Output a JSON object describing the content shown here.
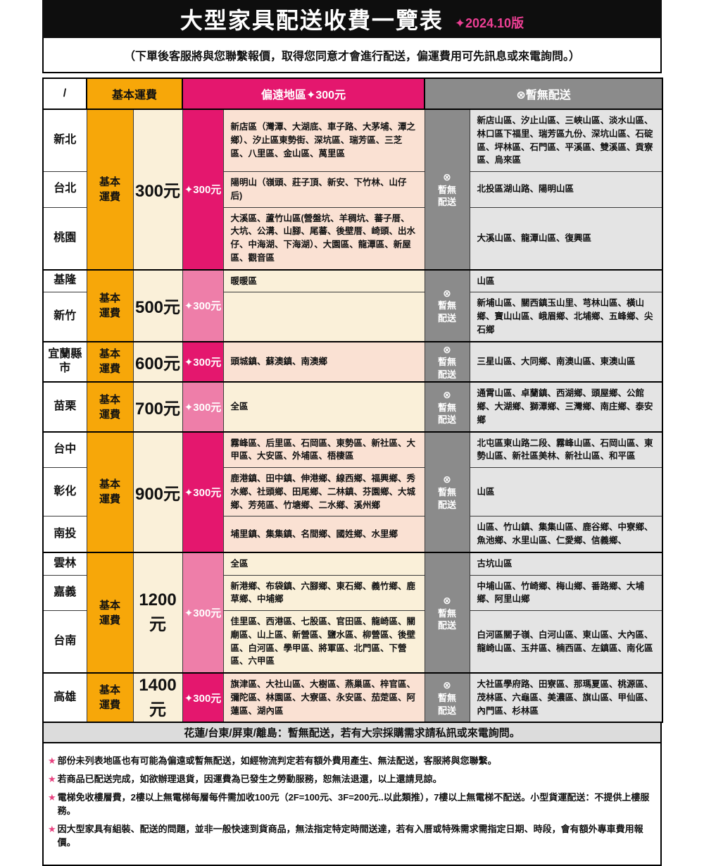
{
  "header": {
    "title": "大型家具配送收費一覽表",
    "version": "✦2024.10版"
  },
  "subtitle": "（下單後客服將與您聯繫報價，取得您同意才會進行配送，偏運費用可先訊息或來電詢問。）",
  "table": {
    "headers": {
      "region": "/",
      "basic": "基本運費",
      "remote": "偏遠地區✦300元",
      "no_delivery": "⊗暫無配送"
    },
    "basic_fee_label_lines": [
      "基本",
      "運費"
    ],
    "no_delivery_label_lines": [
      "⊗",
      "暫無",
      "配送"
    ],
    "groups": [
      {
        "fee": "300元",
        "surcharge": "✦300元",
        "accent": "magenta",
        "rows": [
          {
            "region": "新北",
            "remote": "新店區（灣潭、大湖底、車子路、大茅埔、潭之鄉）、汐止區東勢街、深坑區、瑞芳區、三芝區、八里區、金山區、萬里區",
            "no_delivery": "新店山區、汐止山區、三峽山區、淡水山區、林口區下福里、瑞芳區九份、深坑山區、石碇區、坪林區、石門區、平溪區、雙溪區、貢寮區、烏來區"
          },
          {
            "region": "台北",
            "remote": "陽明山（嶺頭、莊子頂、新安、下竹林、山仔后)",
            "no_delivery": "北投區湖山路、陽明山區"
          },
          {
            "region": "桃園",
            "remote": "大溪區、蘆竹山區(營盤坑、羊稠坑、蕃子厝、大坑、公溝、山腳、尾蕃、後壁厝、崎頭、出水仔、中海湖、下海湖）、大園區、龍潭區、新屋區、觀音區",
            "no_delivery": "大溪山區、龍潭山區、復興區"
          }
        ]
      },
      {
        "fee": "500元",
        "surcharge": "✦300元",
        "accent": "pink",
        "rows": [
          {
            "region": "基隆",
            "remote": "暖暖區",
            "no_delivery": "山區"
          },
          {
            "region": "新竹",
            "remote": "",
            "no_delivery": "新埔山區、關西鎮玉山里、芎林山區、橫山鄉、寶山山區、峨眉鄉、北埔鄉、五峰鄉、尖石鄉"
          }
        ]
      },
      {
        "fee": "600元",
        "surcharge": "✦300元",
        "accent": "magenta",
        "rows": [
          {
            "region": "宜蘭縣市",
            "remote": "頭城鎮、蘇澳鎮、南澳鄉",
            "no_delivery": "三星山區、大同鄉、南澳山區、東澳山區"
          }
        ]
      },
      {
        "fee": "700元",
        "surcharge": "✦300元",
        "accent": "pink",
        "rows": [
          {
            "region": "苗栗",
            "remote": "全區",
            "no_delivery": "通霄山區、卓蘭鎮、西湖鄉、頭屋鄉、公館鄉、大湖鄉、獅潭鄉、三灣鄉、南庄鄉、泰安鄉"
          }
        ]
      },
      {
        "fee": "900元",
        "surcharge": "✦300元",
        "accent": "magenta",
        "rows": [
          {
            "region": "台中",
            "remote": "霧峰區、后里區、石岡區、東勢區、新社區、大甲區、大安區、外埔區、梧棲區",
            "no_delivery": "北屯區東山路二段、霧峰山區、石岡山區、東勢山區、新社區美林、新社山區、和平區"
          },
          {
            "region": "彰化",
            "remote": "鹿港鎮、田中鎮、伸港鄉、線西鄉、福興鄉、秀水鄉、社頭鄉、田尾鄉、二林鎮、芬園鄉、大城鄉、芳苑區、竹塘鄉、二水鄉、溪州鄉",
            "no_delivery": "山區"
          },
          {
            "region": "南投",
            "remote": "埔里鎮、集集鎮、名間鄉、國姓鄉、水里鄉",
            "no_delivery": "山區、竹山鎮、集集山區、鹿谷鄉、中寮鄉、魚池鄉、水里山區、仁愛鄉、信義鄉、"
          }
        ]
      },
      {
        "fee": "1200元",
        "surcharge": "✦300元",
        "accent": "pink",
        "rows": [
          {
            "region": "雲林",
            "remote": "全區",
            "no_delivery": "古坑山區"
          },
          {
            "region": "嘉義",
            "remote": "新港鄉、布袋鎮、六腳鄉、東石鄉、義竹鄉、鹿草鄉、中埔鄉",
            "no_delivery": "中埔山區、竹崎鄉、梅山鄉、番路鄉、大埔鄉、阿里山鄉"
          },
          {
            "region": "台南",
            "remote": "佳里區、西港區、七股區、官田區、龍崎區、關廟區、山上區、新營區、鹽水區、柳營區、後壁區、白河區、學甲區、將軍區、北門區、下營區、六甲區",
            "no_delivery": "白河區關子嶺、白河山區、東山區、大內區、龍崎山區、玉井區、楠西區、左鎮區、南化區"
          }
        ]
      },
      {
        "fee": "1400元",
        "surcharge": "✦300元",
        "accent": "magenta",
        "rows": [
          {
            "region": "高雄",
            "remote": "旗津區、大社山區、大樹區、燕巢區、梓官區、彌陀區、林園區、大寮區、永安區、茄萣區、阿蓮區、湖內區",
            "no_delivery": "大社區學府路、田寮區、那瑪夏區、桃源區、茂林區、六龜區、美濃區、旗山區、甲仙區、內門區、杉林區"
          }
        ]
      }
    ]
  },
  "footer_bar": "花蓮/台東/屏東/離島：暫無配送，若有大宗採購需求請私訊或來電詢問。",
  "notes": [
    {
      "star": "★",
      "text": "部份未列表地區也有可能為偏遠或暫無配送，如經物流判定若有額外費用產生、無法配送，客服將與您聯繫。"
    },
    {
      "star": "★",
      "text": "若商品已配送完成，如欲辦理退貨，因運費為已發生之勞動服務，恕無法退還，以上還請見諒。"
    },
    {
      "star": "★",
      "text": "電梯免收樓層費，2樓以上無電梯每層每件需加收100元（2F=100元、3F=200元..以此類推），7樓以上無電梯不配送。小型貨運配送：不提供上樓服務。"
    },
    {
      "star": "★",
      "text": "因大型家具有組裝、配送的問題，並非一般快速到貨商品，無法指定特定時間送達，若有入厝或特殊需求需指定日期、時段，會有額外專車費用報價。"
    }
  ],
  "colors": {
    "magenta": "#E4176E",
    "light_pink": "#EE7EA9",
    "orange": "#F7A709",
    "cream": "#FAF0D9",
    "peach": "#FAE1D3",
    "gray_label": "#8B8B8B",
    "light_gray_cell": "#E4E4E4",
    "footer_gray": "#DCDCDC",
    "title_pink": "#ED3F94",
    "header_black": "#0E0E0E"
  }
}
